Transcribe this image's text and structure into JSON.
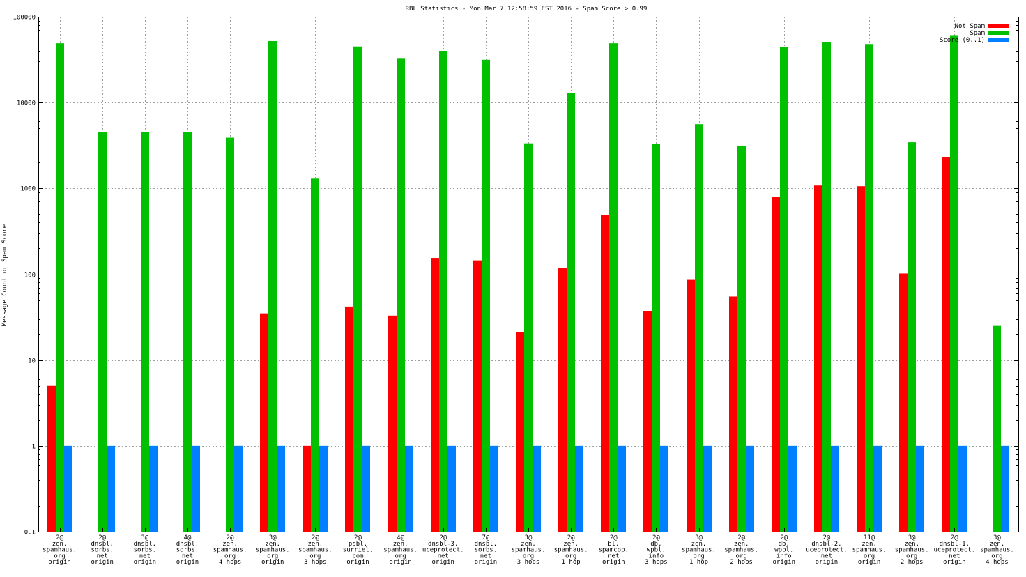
{
  "chart_data": {
    "type": "bar",
    "title": "RBL Statistics - Mon Mar  7 12:58:59 EST 2016 - Spam Score > 0.99",
    "ylabel": "Message Count or Spam Score",
    "xlabel": "",
    "yscale": "log",
    "ylim": [
      0.1,
      100000
    ],
    "yticks": [
      "0.1",
      "1",
      "10",
      "100",
      "1000",
      "10000",
      "100000"
    ],
    "grid": true,
    "legend_position": "top-right",
    "categories": [
      [
        "2@",
        "zen.",
        "spamhaus.",
        "org",
        "origin"
      ],
      [
        "2@",
        "dnsbl.",
        "sorbs.",
        "net",
        "origin"
      ],
      [
        "3@",
        "dnsbl.",
        "sorbs.",
        "net",
        "origin"
      ],
      [
        "4@",
        "dnsbl.",
        "sorbs.",
        "net",
        "origin"
      ],
      [
        "2@",
        "zen.",
        "spamhaus.",
        "org",
        "4 hops"
      ],
      [
        "3@",
        "zen.",
        "spamhaus.",
        "org",
        "origin"
      ],
      [
        "2@",
        "zen.",
        "spamhaus.",
        "org",
        "3 hops"
      ],
      [
        "2@",
        "psbl.",
        "surriel.",
        "com",
        "origin"
      ],
      [
        "4@",
        "zen.",
        "spamhaus.",
        "org",
        "origin"
      ],
      [
        "2@",
        "dnsbl-3.",
        "uceprotect.",
        "net",
        "origin"
      ],
      [
        "7@",
        "dnsbl.",
        "sorbs.",
        "net",
        "origin"
      ],
      [
        "3@",
        "zen.",
        "spamhaus.",
        "org",
        "3 hops"
      ],
      [
        "2@",
        "zen.",
        "spamhaus.",
        "org",
        "1 hop"
      ],
      [
        "2@",
        "bl.",
        "spamcop.",
        "net",
        "origin"
      ],
      [
        "2@",
        "db.",
        "wpbl.",
        "info",
        "3 hops"
      ],
      [
        "3@",
        "zen.",
        "spamhaus.",
        "org",
        "1 hop"
      ],
      [
        "2@",
        "zen.",
        "spamhaus.",
        "org",
        "2 hops"
      ],
      [
        "2@",
        "db.",
        "wpbl.",
        "info",
        "origin"
      ],
      [
        "2@",
        "dnsbl-2.",
        "uceprotect.",
        "net",
        "origin"
      ],
      [
        "11@",
        "zen.",
        "spamhaus.",
        "org",
        "origin"
      ],
      [
        "3@",
        "zen.",
        "spamhaus.",
        "org",
        "2 hops"
      ],
      [
        "2@",
        "dnsbl-1.",
        "uceprotect.",
        "net",
        "origin"
      ],
      [
        "3@",
        "zen.",
        "spamhaus.",
        "org",
        "4 hops"
      ]
    ],
    "series": [
      {
        "name": "Not Spam",
        "color": "#ff0000",
        "values": [
          5,
          null,
          null,
          null,
          null,
          35,
          1,
          42,
          33,
          155,
          145,
          21,
          118,
          490,
          37,
          86,
          55,
          790,
          1080,
          1060,
          102,
          2300,
          null
        ]
      },
      {
        "name": "Spam",
        "color": "#00c000",
        "values": [
          49000,
          4500,
          4500,
          4500,
          3900,
          52000,
          1300,
          45000,
          33000,
          40000,
          31500,
          3350,
          13000,
          49000,
          3300,
          5600,
          3150,
          44000,
          51000,
          48000,
          3450,
          61000,
          25
        ]
      },
      {
        "name": "Score (0..1)",
        "color": "#0080ff",
        "values": [
          1,
          1,
          1,
          1,
          1,
          1,
          1,
          1,
          1,
          1,
          1,
          1,
          1,
          1,
          1,
          1,
          1,
          1,
          1,
          1,
          1,
          1,
          1
        ]
      }
    ]
  }
}
